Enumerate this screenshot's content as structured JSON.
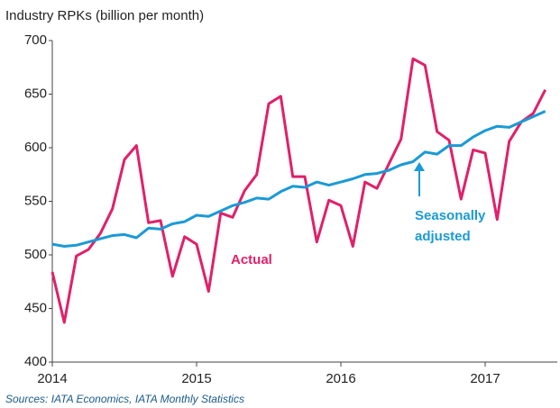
{
  "chart_data": {
    "type": "line",
    "title": "Industry RPKs (billion per month)",
    "source": "Sources: IATA Economics, IATA Monthly Statistics",
    "annotations": [
      "Actual",
      "Seasonally",
      "adjusted"
    ],
    "x": [
      2014,
      2014.083,
      2014.167,
      2014.25,
      2014.333,
      2014.417,
      2014.5,
      2014.583,
      2014.667,
      2014.75,
      2014.833,
      2014.917,
      2015,
      2015.083,
      2015.167,
      2015.25,
      2015.333,
      2015.417,
      2015.5,
      2015.583,
      2015.667,
      2015.75,
      2015.833,
      2015.917,
      2016,
      2016.083,
      2016.167,
      2016.25,
      2016.333,
      2016.417,
      2016.5,
      2016.583,
      2016.667,
      2016.75,
      2016.833,
      2016.917,
      2017,
      2017.083,
      2017.167,
      2017.25,
      2017.333,
      2017.417
    ],
    "series": [
      {
        "name": "Actual",
        "color": "#e0206a",
        "values": [
          484,
          437,
          499,
          505,
          520,
          543,
          589,
          602,
          530,
          532,
          480,
          517,
          510,
          466,
          539,
          535,
          560,
          575,
          641,
          648,
          573,
          573,
          512,
          551,
          546,
          508,
          568,
          562,
          585,
          608,
          683,
          677,
          615,
          607,
          552,
          598,
          595,
          533,
          606,
          624,
          632,
          654
        ]
      },
      {
        "name": "Seasonally adjusted",
        "color": "#1a9ad6",
        "values": [
          510,
          508,
          509,
          512,
          515,
          518,
          519,
          516,
          525,
          524,
          529,
          531,
          537,
          536,
          541,
          546,
          549,
          553,
          552,
          559,
          564,
          563,
          568,
          565,
          568,
          571,
          575,
          576,
          579,
          584,
          587,
          596,
          594,
          602,
          602,
          610,
          616,
          620,
          619,
          624,
          629,
          634
        ]
      }
    ],
    "xlim": [
      2014,
      2017.5
    ],
    "xticks": [
      2014,
      2015,
      2016,
      2017
    ],
    "ylim": [
      400,
      700
    ],
    "yticks": [
      400,
      450,
      500,
      550,
      600,
      650,
      700
    ],
    "grid": false
  }
}
